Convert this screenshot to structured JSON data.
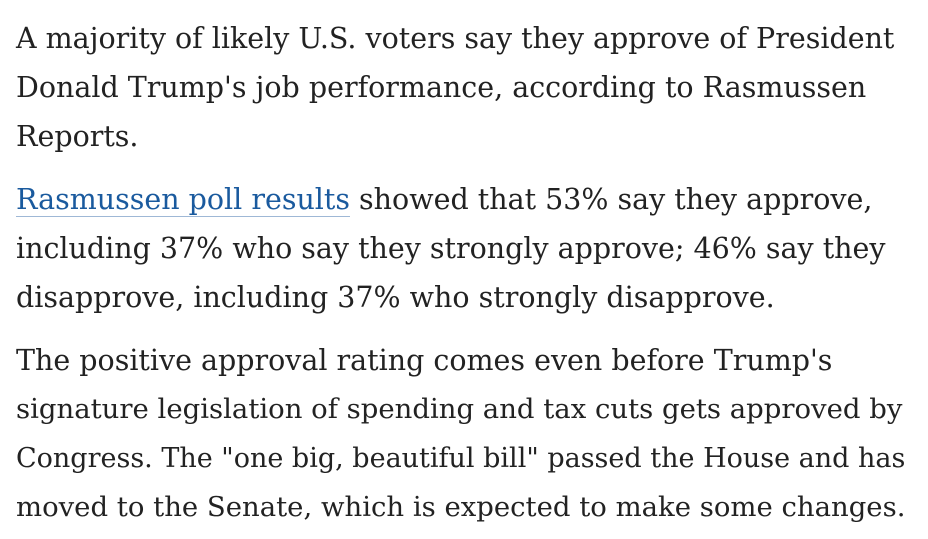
{
  "article": {
    "paragraphs": [
      {
        "lines": [
          "A majority of likely U.S. voters say they approve of President",
          "Donald Trump's job performance, according to Rasmussen",
          "Reports."
        ]
      },
      {
        "link_text": "Rasmussen poll results",
        "lines": [
          " showed that 53% say they approve,",
          "including 37% who say they strongly approve; 46% say they",
          "disapprove, including 37% who strongly disapprove."
        ]
      },
      {
        "lines": [
          "The positive approval rating comes even before Trump's",
          "signature legislation of spending and tax cuts gets approved by",
          "Congress. The \"one big, beautiful bill\" passed the House and has",
          "moved to the Senate, which is expected to make some changes."
        ]
      }
    ]
  },
  "colors": {
    "text": "#222222",
    "link": "#1a5a9e",
    "background": "#ffffff"
  }
}
